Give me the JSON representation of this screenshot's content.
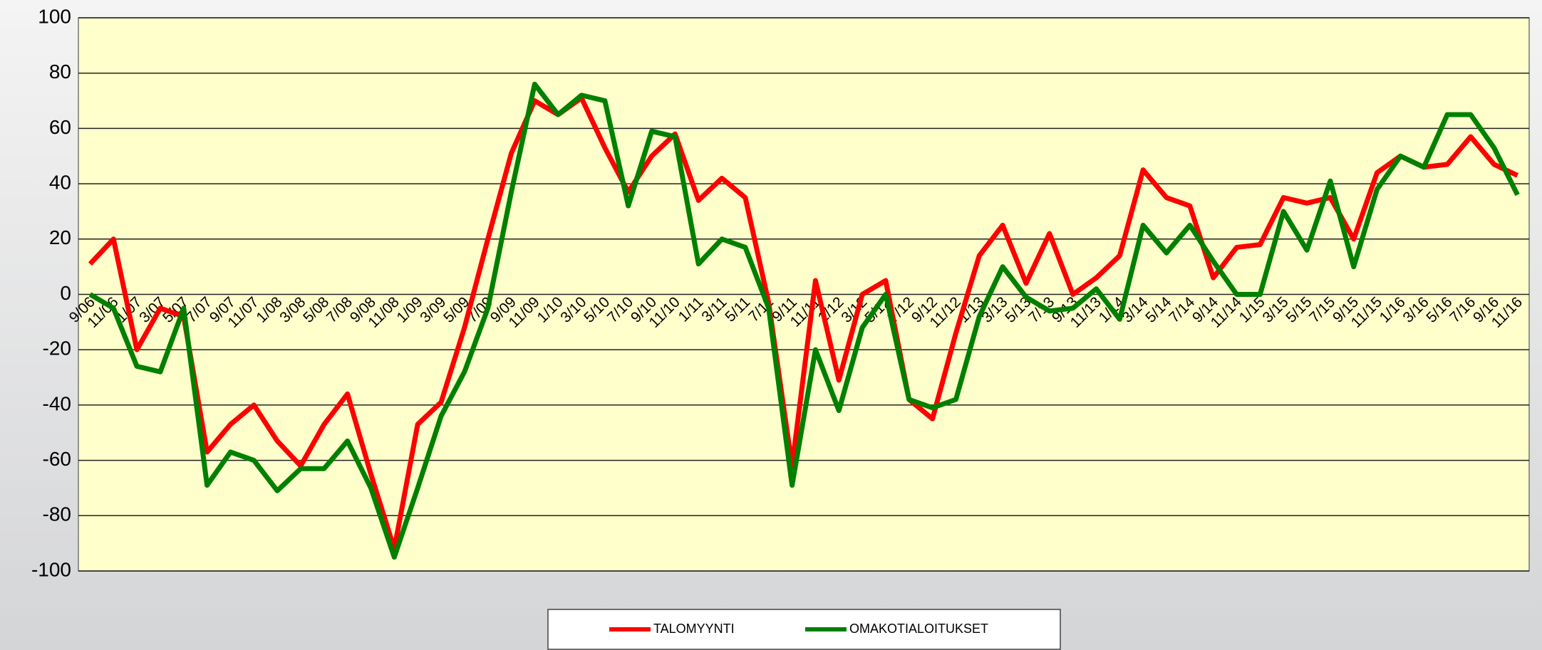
{
  "chart_data": {
    "type": "line",
    "categories": [
      "9/06",
      "11/06",
      "1/07",
      "3/07",
      "5/07",
      "7/07",
      "9/07",
      "11/07",
      "1/08",
      "3/08",
      "5/08",
      "7/08",
      "9/08",
      "11/08",
      "1/09",
      "3/09",
      "5/09",
      "7/09",
      "9/09",
      "11/09",
      "1/10",
      "3/10",
      "5/10",
      "7/10",
      "9/10",
      "11/10",
      "1/11",
      "3/11",
      "5/11",
      "7/11",
      "9/11",
      "11/11",
      "1/12",
      "3/12",
      "5/12",
      "7/12",
      "9/12",
      "11/12",
      "1/13",
      "3/13",
      "5/13",
      "7/13",
      "9/13",
      "11/13",
      "1/14",
      "3/14",
      "5/14",
      "7/14",
      "9/14",
      "11/14",
      "1/15",
      "3/15",
      "5/15",
      "7/15",
      "9/15",
      "11/15",
      "1/16",
      "3/16",
      "5/16",
      "7/16",
      "9/16",
      "11/16"
    ],
    "series": [
      {
        "name": "TALOMYYNTI",
        "color": "#ff0000",
        "values": [
          11,
          20,
          -20,
          -5,
          -8,
          -57,
          -47,
          -40,
          -53,
          -62,
          -47,
          -36,
          -65,
          -92,
          -47,
          -39,
          -12,
          20,
          51,
          70,
          65,
          71,
          53,
          37,
          50,
          58,
          34,
          42,
          35,
          -3,
          -62,
          5,
          -31,
          0,
          5,
          -38,
          -45,
          -14,
          14,
          25,
          4,
          22,
          0,
          6,
          14,
          45,
          35,
          32,
          6,
          17,
          18,
          35,
          33,
          35,
          20,
          44,
          50,
          46,
          47,
          57,
          47,
          43
        ]
      },
      {
        "name": "OMAKOTIALOITUKSET",
        "color": "#008000",
        "values": [
          0,
          -5,
          -26,
          -28,
          -5,
          -69,
          -57,
          -60,
          -71,
          -63,
          -63,
          -53,
          -70,
          -95,
          -70,
          -44,
          -28,
          -5,
          37,
          76,
          65,
          72,
          70,
          32,
          59,
          57,
          11,
          20,
          17,
          -5,
          -69,
          -20,
          -42,
          -12,
          0,
          -38,
          -41,
          -38,
          -8,
          10,
          -1,
          -6,
          -5,
          2,
          -9,
          25,
          15,
          25,
          12,
          0,
          0,
          30,
          16,
          41,
          10,
          38,
          50,
          46,
          65,
          65,
          53,
          36
        ]
      }
    ],
    "ylim": [
      -100,
      100
    ],
    "yticks": [
      -100,
      -80,
      -60,
      -40,
      -20,
      0,
      20,
      40,
      60,
      80,
      100
    ],
    "grid": true,
    "legend": "bottom"
  }
}
